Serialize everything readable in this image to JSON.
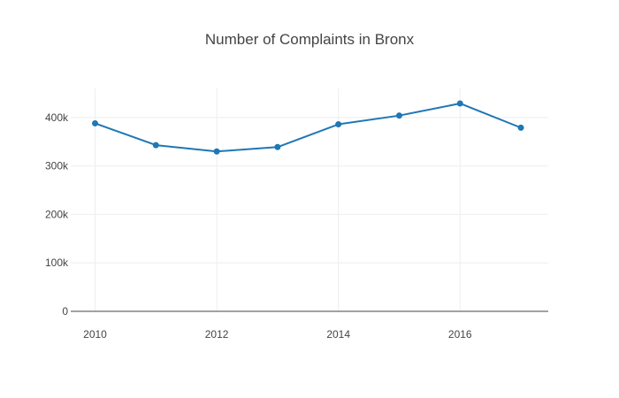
{
  "chart_data": {
    "type": "line",
    "title": "Number of Complaints in Bronx",
    "xlabel": "",
    "ylabel": "",
    "x": [
      2010,
      2011,
      2012,
      2013,
      2014,
      2015,
      2016,
      2017
    ],
    "series": [
      {
        "values": [
          388000,
          343000,
          330000,
          339000,
          386000,
          404000,
          429000,
          379000
        ],
        "color": "#1f77b4"
      }
    ],
    "xlim": [
      2009.6,
      2017.45
    ],
    "ylim": [
      0,
      460000
    ],
    "x_ticks": [
      2010,
      2012,
      2014,
      2016
    ],
    "x_tick_labels": [
      "2010",
      "2012",
      "2014",
      "2016"
    ],
    "y_ticks": [
      0,
      100000,
      200000,
      300000,
      400000
    ],
    "y_tick_labels": [
      "0",
      "100k",
      "200k",
      "300k",
      "400k"
    ],
    "grid": true,
    "legend": "none"
  }
}
